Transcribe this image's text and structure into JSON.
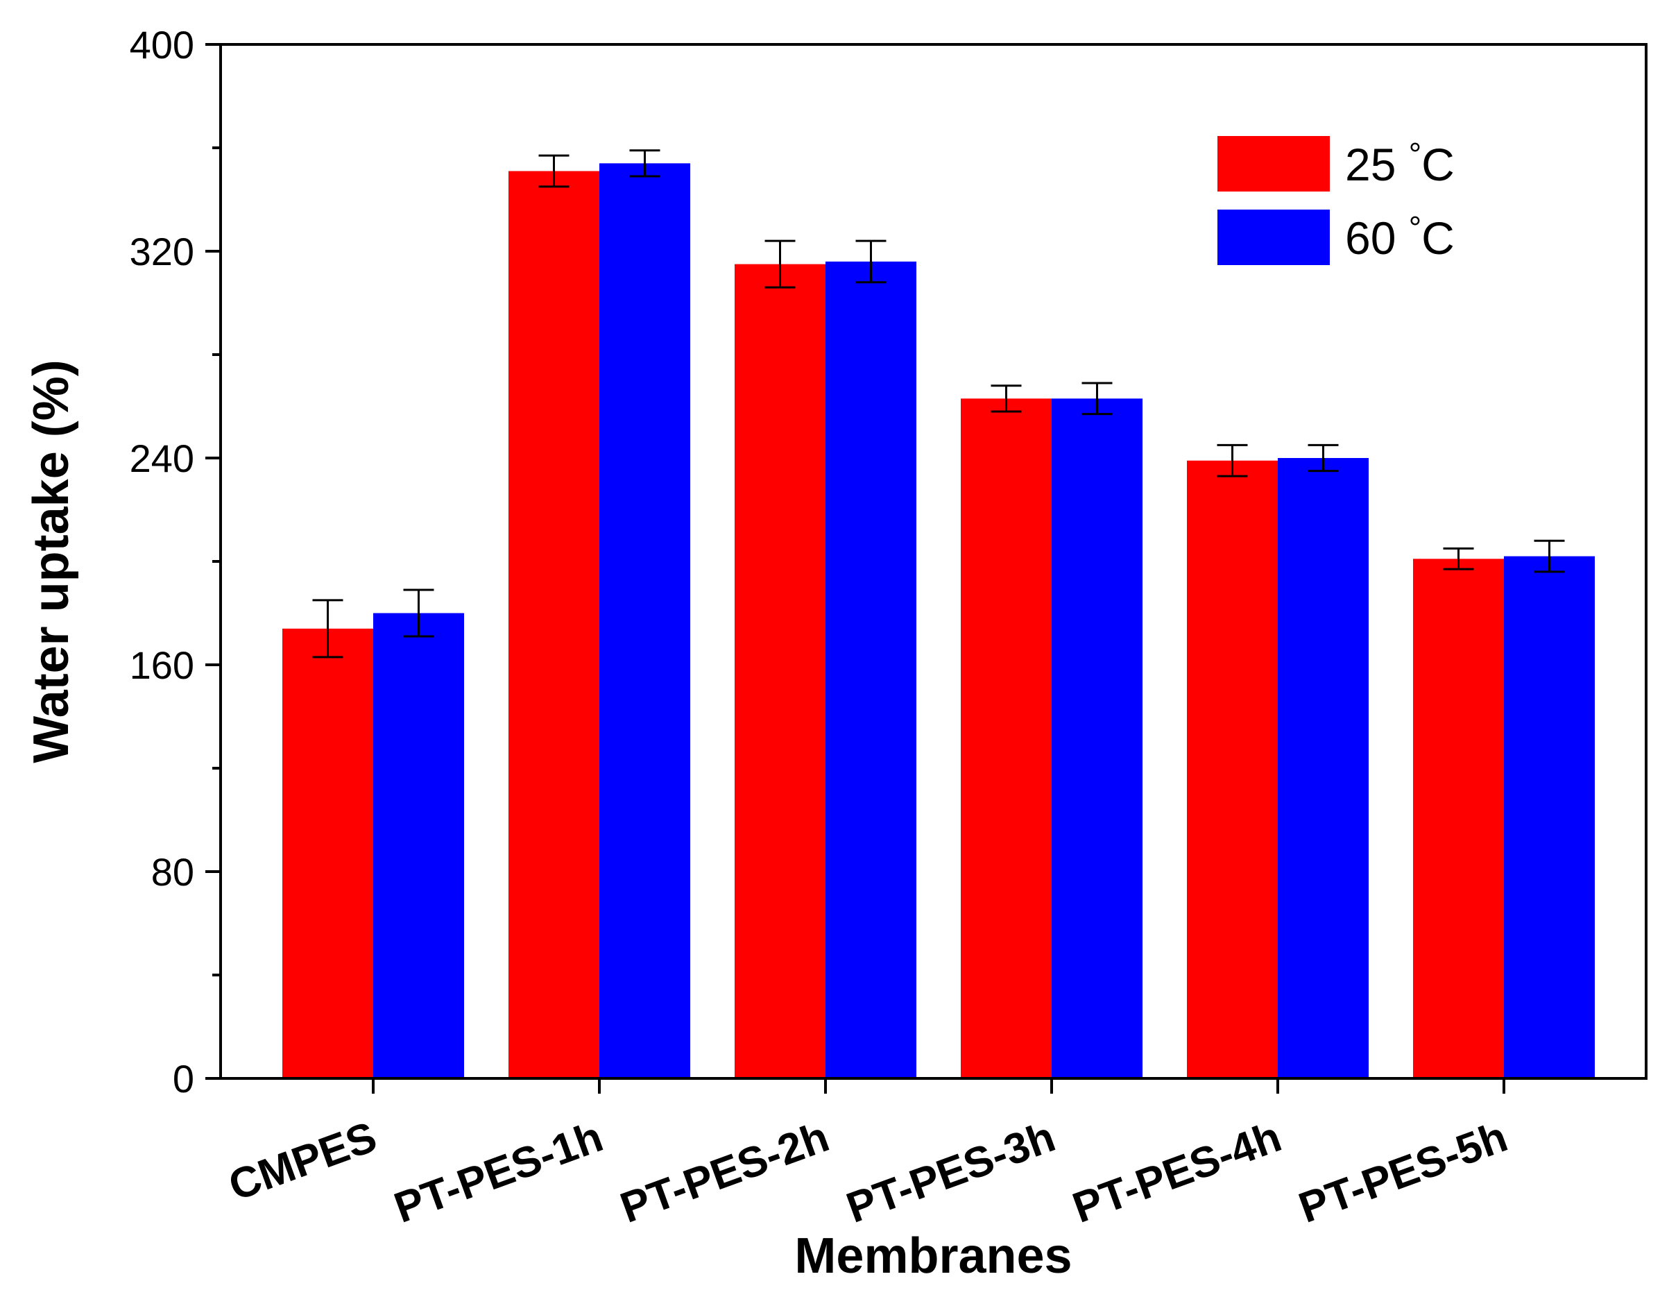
{
  "chart_data": {
    "type": "bar",
    "title": "",
    "xlabel": "Membranes",
    "ylabel": "Water uptake (%)",
    "ylim": [
      0,
      400
    ],
    "yticks": [
      0,
      80,
      160,
      240,
      320,
      400
    ],
    "categories": [
      "CMPES",
      "PT-PES-1h",
      "PT-PES-2h",
      "PT-PES-3h",
      "PT-PES-4h",
      "PT-PES-5h"
    ],
    "series": [
      {
        "name": "25 °C",
        "color": "#ff0000",
        "values": [
          174,
          351,
          315,
          263,
          239,
          201
        ],
        "errors": [
          11,
          6,
          9,
          5,
          6,
          4
        ]
      },
      {
        "name": "60 °C",
        "color": "#0000ff",
        "values": [
          180,
          354,
          316,
          263,
          240,
          202
        ],
        "errors": [
          9,
          5,
          8,
          6,
          5,
          6
        ]
      }
    ],
    "legend": {
      "position": "top-right",
      "entries": [
        {
          "number": "25",
          "unit": "°C"
        },
        {
          "number": "60",
          "unit": "°C"
        }
      ]
    }
  }
}
